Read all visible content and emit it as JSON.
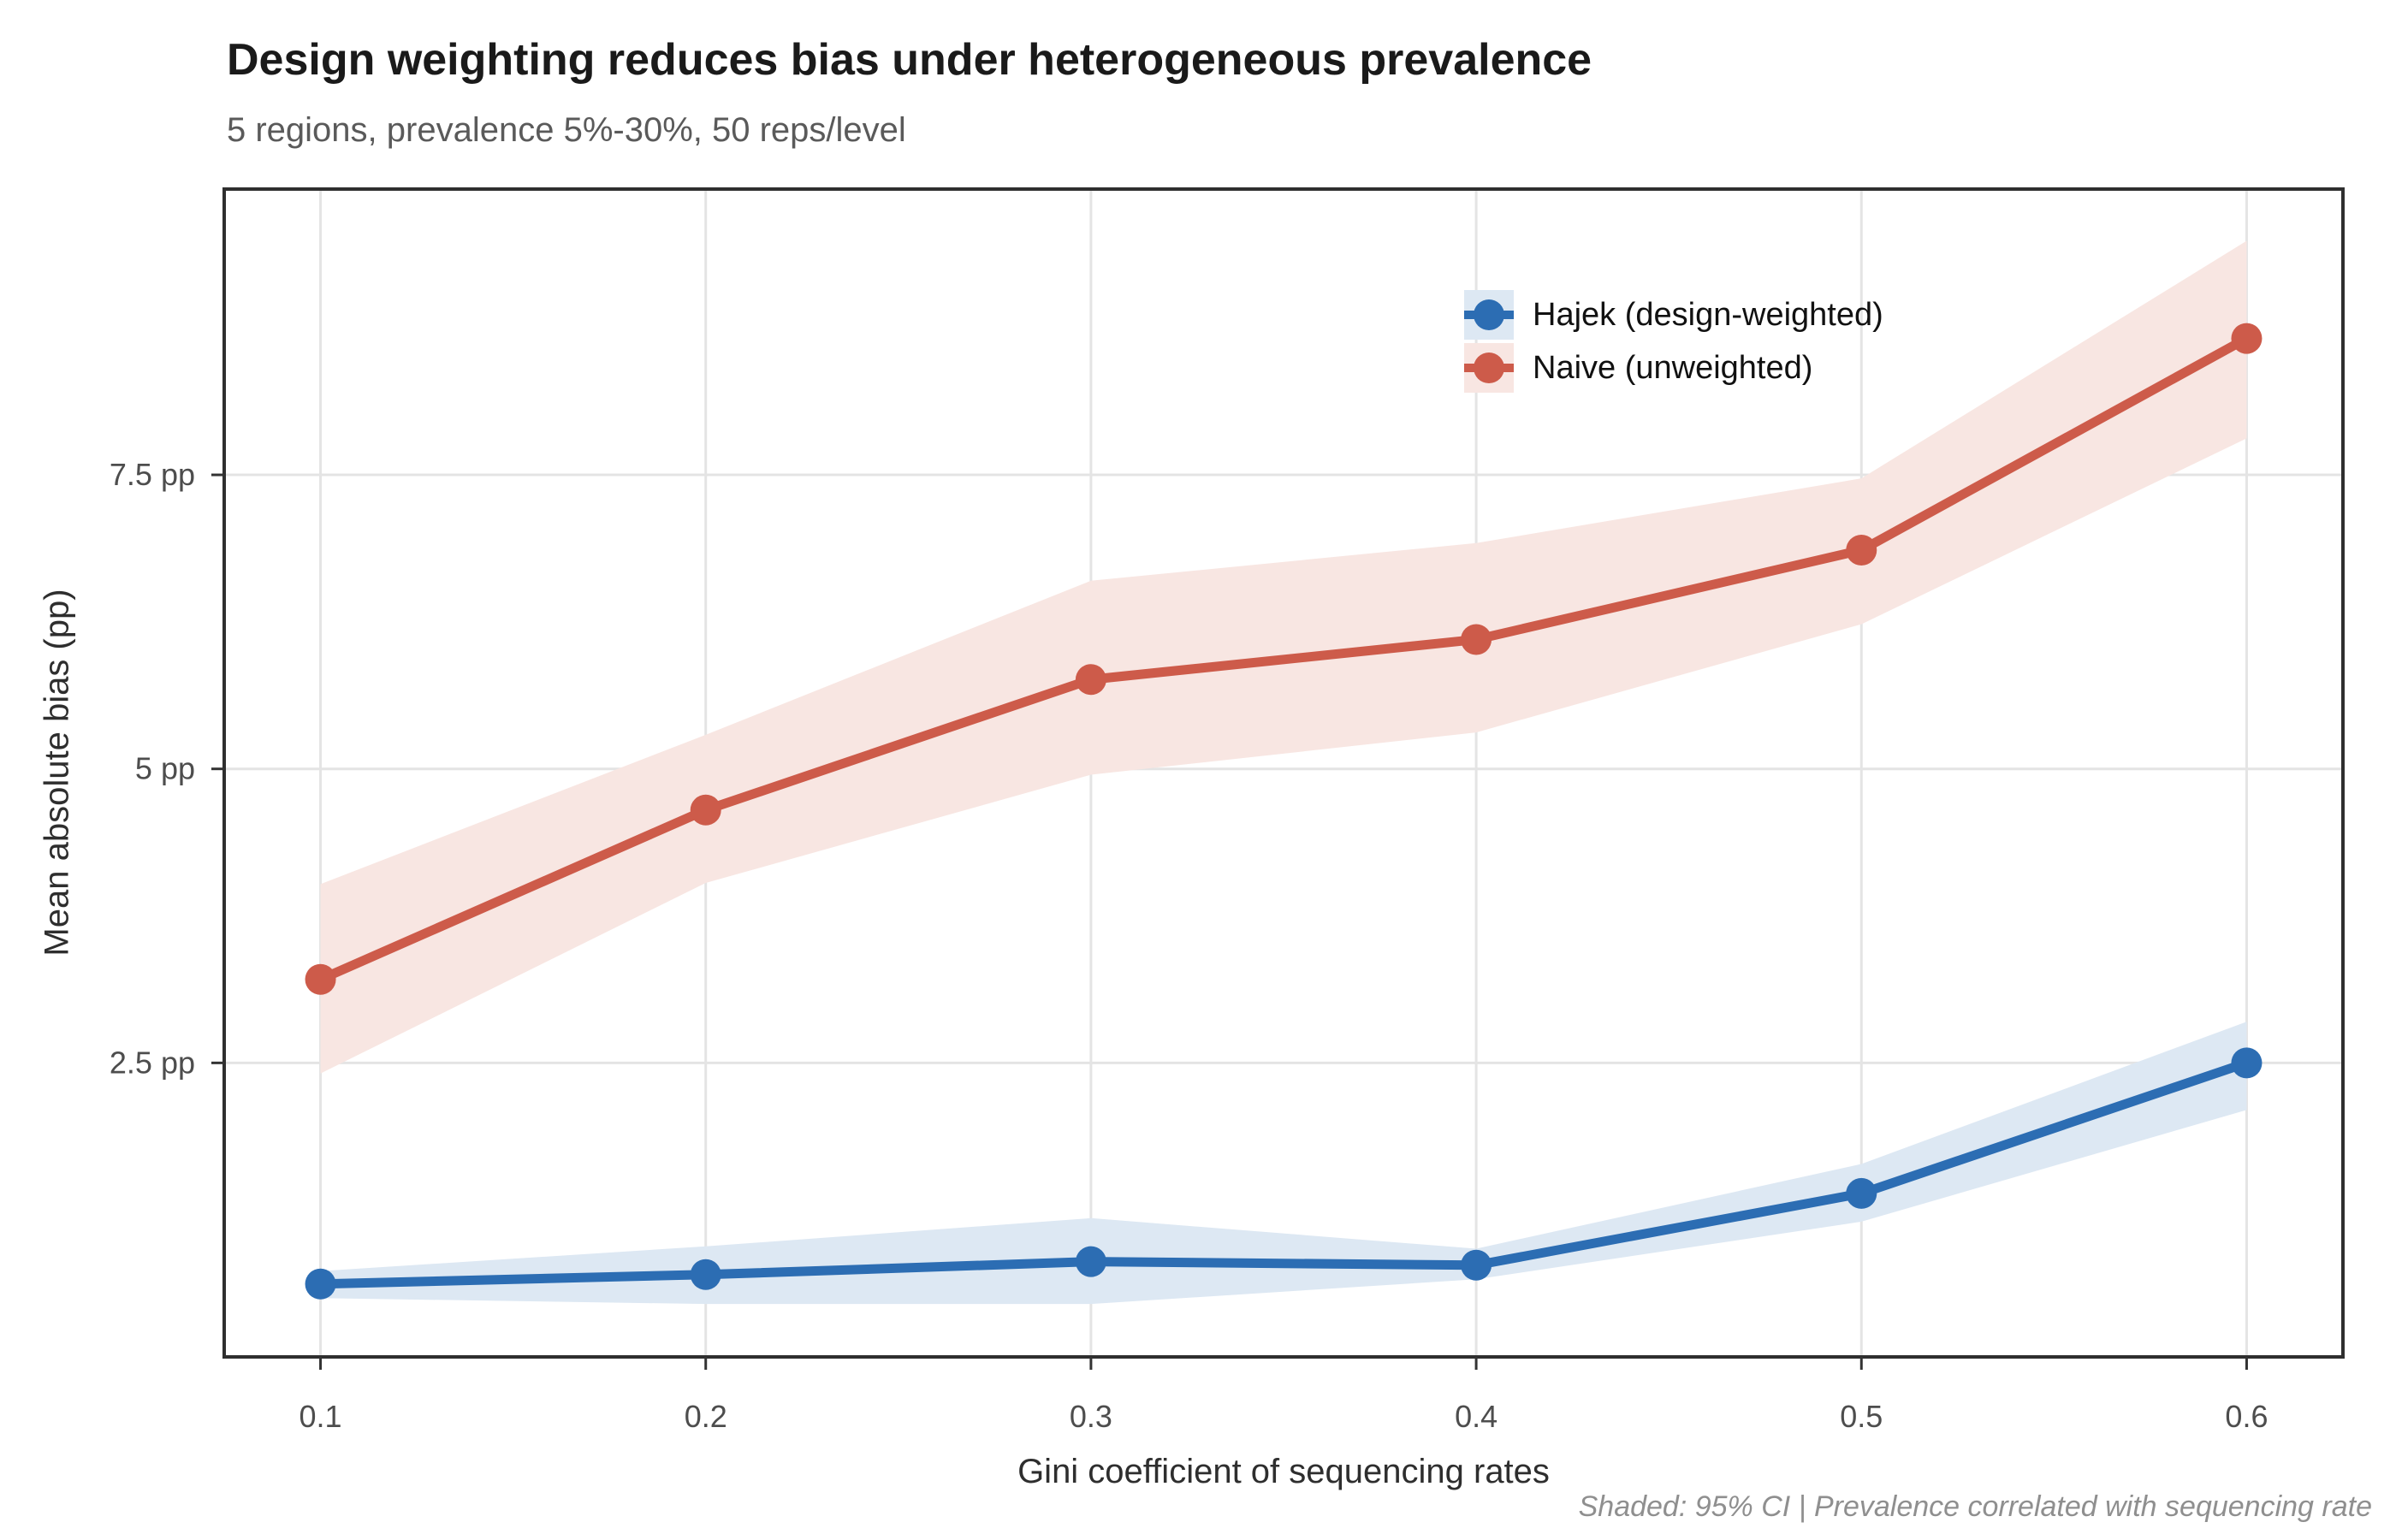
{
  "header": {
    "title": "Design weighting reduces bias under heterogeneous prevalence",
    "subtitle": "5 regions, prevalence 5%-30%, 50 reps/level"
  },
  "axes": {
    "x_title": "Gini coefficient of sequencing rates",
    "y_title": "Mean absolute bias (pp)",
    "x_tick_labels": [
      "0.1",
      "0.2",
      "0.3",
      "0.4",
      "0.5",
      "0.6"
    ],
    "y_tick_labels": [
      "2.5 pp",
      "5 pp",
      "7.5 pp"
    ]
  },
  "caption": "Shaded: 95% CI | Prevalence correlated with sequencing rate",
  "legend": {
    "items": [
      {
        "label": "Hajek (design-weighted)"
      },
      {
        "label": "Naive (unweighted)"
      }
    ]
  },
  "chart_data": {
    "type": "line",
    "title": "Design weighting reduces bias under heterogeneous prevalence",
    "subtitle": "5 regions, prevalence 5%-30%, 50 reps/level",
    "caption": "Shaded: 95% CI | Prevalence correlated with sequencing rate",
    "xlabel": "Gini coefficient of sequencing rates",
    "ylabel": "Mean absolute bias (pp)",
    "x": [
      0.1,
      0.2,
      0.3,
      0.4,
      0.5,
      0.6
    ],
    "x_tick_values": [
      0.1,
      0.2,
      0.3,
      0.4,
      0.5,
      0.6
    ],
    "y_tick_values": [
      2.5,
      5,
      7.5
    ],
    "y_tick_labels": [
      "2.5 pp",
      "5 pp",
      "7.5 pp"
    ],
    "xlim": [
      0.075,
      0.625
    ],
    "ylim": [
      0,
      9.93
    ],
    "grid": true,
    "legend_position": "top-right-inside",
    "shaded_band": "95% CI",
    "series": [
      {
        "name": "Hajek (design-weighted)",
        "color": "#2c6db3",
        "ribbon_color": "#dde8f3",
        "values": [
          0.62,
          0.7,
          0.81,
          0.78,
          1.39,
          2.5
        ],
        "ci_low": [
          0.5,
          0.45,
          0.45,
          0.66,
          1.15,
          2.1
        ],
        "ci_high": [
          0.73,
          0.94,
          1.18,
          0.92,
          1.64,
          2.85
        ]
      },
      {
        "name": "Naive (unweighted)",
        "color": "#cd5b4a",
        "ribbon_color": "#f8e6e2",
        "values": [
          3.21,
          4.65,
          5.76,
          6.1,
          6.86,
          8.66
        ],
        "ci_low": [
          2.41,
          4.03,
          4.95,
          5.31,
          6.23,
          7.81
        ],
        "ci_high": [
          4.02,
          5.29,
          6.6,
          6.92,
          7.47,
          9.49
        ]
      }
    ]
  }
}
